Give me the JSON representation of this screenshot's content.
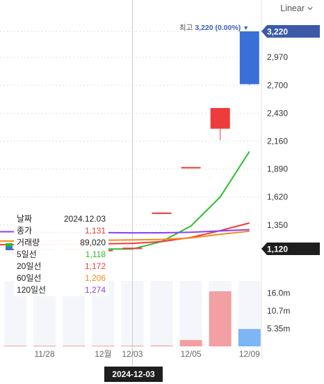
{
  "ui": {
    "scale_label": "Linear",
    "cursor_date": "2024-12-03",
    "max_label": {
      "prefix": "최고",
      "value": "3,220 (0.00%)",
      "marker": "▼"
    },
    "last_price_tag": "3,220",
    "cursor_price_tag": "1,120",
    "colors": {
      "up": "#ee3b3b",
      "down": "#3a6fd8",
      "ma5": "#2bbd2b",
      "ma20": "#f03c3c",
      "ma60": "#f5891d",
      "ma120": "#8a3ffc",
      "volume_up": "#f2a0a3",
      "volume_down": "#7db5f5",
      "tag_blue": "#3c5aa8",
      "tag_dark": "#1e1e1e"
    }
  },
  "legend": [
    {
      "label": "날짜",
      "value": "2024.12.03",
      "color": "#222222"
    },
    {
      "label": "종가",
      "value": "1,131",
      "color": "#ee3b3b"
    },
    {
      "label": "거래량",
      "value": "89,020",
      "color": "#222222"
    },
    {
      "label": "5일선",
      "value": "1,118",
      "color": "#2bbd2b"
    },
    {
      "label": "20일선",
      "value": "1,172",
      "color": "#f03c3c"
    },
    {
      "label": "60일선",
      "value": "1,206",
      "color": "#f5891d"
    },
    {
      "label": "120일선",
      "value": "1,274",
      "color": "#8a3ffc"
    }
  ],
  "chart_data": {
    "type": "candlestick",
    "price_axis": {
      "ticks": [
        3220,
        2970,
        2700,
        2430,
        2160,
        1890,
        1620,
        1350,
        1120
      ],
      "tick_labels": [
        "3,220",
        "2,970",
        "2,700",
        "2,430",
        "2,160",
        "1,890",
        "1,620",
        "1,350",
        "1,120"
      ],
      "range": [
        985,
        3220
      ]
    },
    "volume_axis": {
      "ticks": [
        16000000,
        10700000,
        5350000
      ],
      "tick_labels": [
        "16.0m",
        "10.7m",
        "5.35m"
      ]
    },
    "x_tick_labels": [
      {
        "label": "11/28",
        "index": 1
      },
      {
        "label": "12월",
        "index": 3
      },
      {
        "label": "12/03",
        "index": 4
      },
      {
        "label": "12/05",
        "index": 6
      },
      {
        "label": "12/09",
        "index": 8
      }
    ],
    "candles": [
      {
        "open": 1120,
        "high": 1120,
        "low": 1120,
        "close": 1120,
        "volume": 60000
      },
      {
        "open": 1120,
        "high": 1120,
        "low": 1120,
        "close": 1120,
        "volume": 50000
      },
      {
        "open": 1120,
        "high": 1120,
        "low": 1120,
        "close": 1120,
        "volume": 50000
      },
      {
        "open": 1110,
        "high": 1110,
        "low": 1110,
        "close": 1110,
        "volume": 60000
      },
      {
        "open": 1120,
        "high": 1131,
        "low": 1120,
        "close": 1131,
        "volume": 89020
      },
      {
        "open": 1470,
        "high": 1470,
        "low": 1470,
        "close": 1470,
        "volume": 250000
      },
      {
        "open": 1910,
        "high": 1910,
        "low": 1910,
        "close": 1910,
        "volume": 1900000
      },
      {
        "open": 2280,
        "high": 2480,
        "low": 2170,
        "close": 2480,
        "volume": 16500000
      },
      {
        "open": 3220,
        "high": 3220,
        "low": 2700,
        "close": 2710,
        "volume": 5200000
      }
    ],
    "moving_averages": [
      {
        "name": "5일선",
        "color": "#2bbd2b",
        "values": [
          null,
          null,
          1117,
          1117,
          1118,
          1190,
          1340,
          1620,
          2060
        ]
      },
      {
        "name": "20일선",
        "color": "#f03c3c",
        "values": [
          1160,
          1160,
          1165,
          1168,
          1172,
          1190,
          1230,
          1295,
          1370
        ]
      },
      {
        "name": "60일선",
        "color": "#f5891d",
        "values": [
          1195,
          1196,
          1200,
          1203,
          1206,
          1210,
          1225,
          1260,
          1290
        ]
      },
      {
        "name": "120일선",
        "color": "#8a3ffc",
        "values": [
          1285,
          1280,
          1278,
          1276,
          1274,
          1275,
          1280,
          1292,
          1305
        ]
      }
    ]
  }
}
